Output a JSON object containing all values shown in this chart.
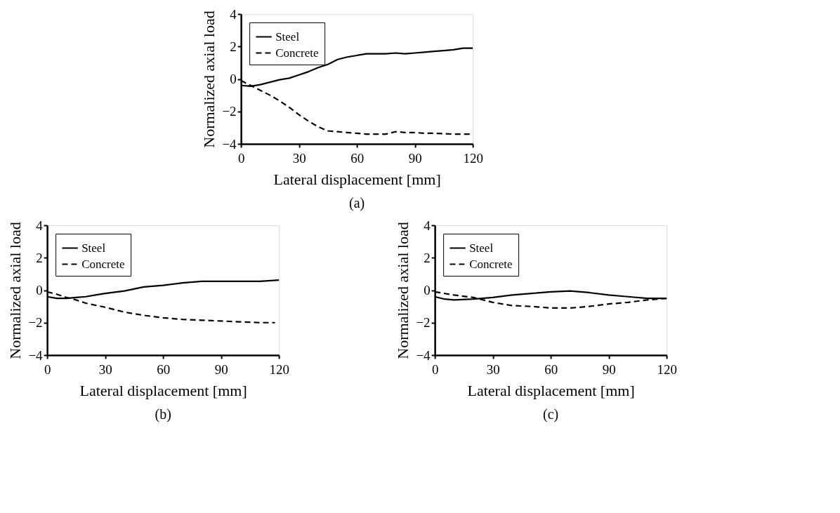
{
  "chart_data": [
    {
      "type": "line",
      "xlabel": "Lateral displacement [mm]",
      "ylabel": "Normalized axial load",
      "annotations": [
        "(a)"
      ],
      "xlim": [
        0,
        120
      ],
      "xticks": [
        0,
        30,
        60,
        90,
        120
      ],
      "ylim": [
        -4,
        4
      ],
      "yticks": [
        -4,
        -2,
        0,
        2,
        4
      ],
      "grid": false,
      "legend": "top left",
      "marker": "none",
      "series": [
        {
          "name": "Steel",
          "color": "#000000",
          "line_style": "solid",
          "x": [
            0,
            5,
            10,
            15,
            20,
            25,
            30,
            35,
            40,
            45,
            50,
            55,
            60,
            65,
            70,
            75,
            80,
            85,
            90,
            95,
            100,
            105,
            110,
            115,
            120
          ],
          "values": [
            -0.4,
            -0.45,
            -0.35,
            -0.2,
            -0.05,
            0.05,
            0.25,
            0.45,
            0.7,
            0.9,
            1.2,
            1.35,
            1.45,
            1.55,
            1.55,
            1.55,
            1.6,
            1.55,
            1.6,
            1.65,
            1.7,
            1.75,
            1.8,
            1.9,
            1.9
          ]
        },
        {
          "name": "Concrete",
          "color": "#000000",
          "line_style": "dashed",
          "x": [
            0,
            5,
            10,
            15,
            20,
            25,
            30,
            35,
            40,
            45,
            50,
            55,
            60,
            65,
            70,
            75,
            80,
            85,
            90,
            95,
            100,
            110,
            120
          ],
          "values": [
            -0.1,
            -0.4,
            -0.7,
            -1.0,
            -1.35,
            -1.75,
            -2.2,
            -2.6,
            -2.95,
            -3.2,
            -3.25,
            -3.3,
            -3.35,
            -3.4,
            -3.4,
            -3.4,
            -3.25,
            -3.3,
            -3.3,
            -3.35,
            -3.35,
            -3.4,
            -3.4
          ]
        }
      ]
    },
    {
      "type": "line",
      "xlabel": "Lateral displacement [mm]",
      "ylabel": "Normalized axial load",
      "annotations": [
        "(b)"
      ],
      "xlim": [
        0,
        120
      ],
      "xticks": [
        0,
        30,
        60,
        90,
        120
      ],
      "ylim": [
        -4,
        4
      ],
      "yticks": [
        -4,
        -2,
        0,
        2,
        4
      ],
      "grid": false,
      "legend": "top left",
      "marker": "none",
      "series": [
        {
          "name": "Steel",
          "color": "#000000",
          "line_style": "solid",
          "x": [
            0,
            5,
            10,
            15,
            20,
            25,
            30,
            40,
            50,
            60,
            70,
            80,
            90,
            100,
            110,
            120
          ],
          "values": [
            -0.4,
            -0.5,
            -0.5,
            -0.45,
            -0.4,
            -0.3,
            -0.2,
            -0.05,
            0.2,
            0.3,
            0.45,
            0.55,
            0.55,
            0.55,
            0.55,
            0.62
          ]
        },
        {
          "name": "Concrete",
          "color": "#000000",
          "line_style": "dashed",
          "x": [
            0,
            5,
            10,
            15,
            20,
            30,
            40,
            50,
            60,
            70,
            80,
            90,
            100,
            110,
            118
          ],
          "values": [
            -0.1,
            -0.25,
            -0.45,
            -0.6,
            -0.8,
            -1.05,
            -1.35,
            -1.55,
            -1.7,
            -1.8,
            -1.85,
            -1.9,
            -1.95,
            -2.0,
            -2.0
          ]
        }
      ]
    },
    {
      "type": "line",
      "xlabel": "Lateral displacement [mm]",
      "ylabel": "Normalized axial load",
      "annotations": [
        "(c)"
      ],
      "xlim": [
        0,
        120
      ],
      "xticks": [
        0,
        30,
        60,
        90,
        120
      ],
      "ylim": [
        -4,
        4
      ],
      "yticks": [
        -4,
        -2,
        0,
        2,
        4
      ],
      "grid": false,
      "legend": "top left",
      "marker": "none",
      "series": [
        {
          "name": "Steel",
          "color": "#000000",
          "line_style": "solid",
          "x": [
            0,
            5,
            10,
            20,
            30,
            40,
            50,
            60,
            70,
            80,
            90,
            100,
            110,
            120
          ],
          "values": [
            -0.4,
            -0.55,
            -0.6,
            -0.55,
            -0.45,
            -0.3,
            -0.2,
            -0.1,
            -0.05,
            -0.15,
            -0.3,
            -0.4,
            -0.5,
            -0.5
          ]
        },
        {
          "name": "Concrete",
          "color": "#000000",
          "line_style": "dashed",
          "x": [
            0,
            10,
            20,
            30,
            40,
            50,
            60,
            70,
            80,
            90,
            100,
            110,
            120
          ],
          "values": [
            -0.1,
            -0.3,
            -0.45,
            -0.75,
            -0.95,
            -1.0,
            -1.1,
            -1.1,
            -1.0,
            -0.85,
            -0.75,
            -0.6,
            -0.5
          ]
        }
      ]
    }
  ]
}
